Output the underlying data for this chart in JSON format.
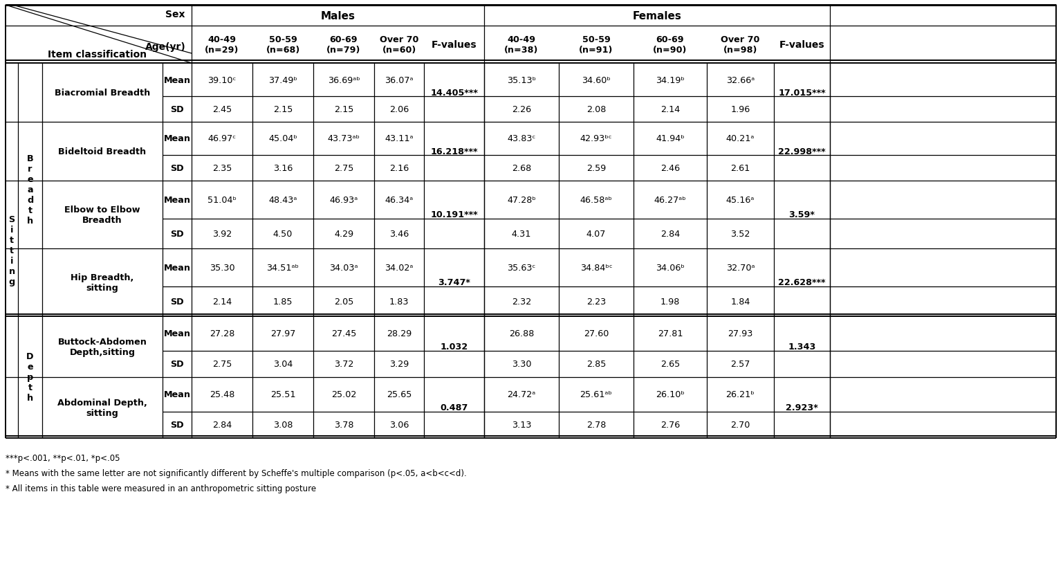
{
  "footnotes": [
    "***p<.001, **p<.01, *p<.05",
    "* Means with the same letter are not significantly different by Scheffe's multiple comparison (p<.05, a<b<c<d).",
    "* All items in this table were measured in an anthropometric sitting posture"
  ],
  "age_groups_male": [
    "40-49\n(n=29)",
    "50-59\n(n=68)",
    "60-69\n(n=79)",
    "Over 70\n(n=60)"
  ],
  "age_groups_female": [
    "40-49\n(n=38)",
    "50-59\n(n=91)",
    "60-69\n(n=90)",
    "Over 70\n(n=98)"
  ],
  "rows": [
    {
      "group": "Breadth",
      "item": "Biacromial Breadth",
      "stat": "Mean",
      "male_vals": [
        "39.10ᶜ",
        "37.49ᵇ",
        "36.69ᵃᵇ",
        "36.07ᵃ"
      ],
      "fval_male": "14.405***",
      "female_vals": [
        "35.13ᵇ",
        "34.60ᵇ",
        "34.19ᵇ",
        "32.66ᵃ"
      ],
      "fval_female": "17.015***"
    },
    {
      "group": "Breadth",
      "item": "Biacromial Breadth",
      "stat": "SD",
      "male_vals": [
        "2.45",
        "2.15",
        "2.15",
        "2.06"
      ],
      "fval_male": "",
      "female_vals": [
        "2.26",
        "2.08",
        "2.14",
        "1.96"
      ],
      "fval_female": ""
    },
    {
      "group": "Breadth",
      "item": "Bideltoid Breadth",
      "stat": "Mean",
      "male_vals": [
        "46.97ᶜ",
        "45.04ᵇ",
        "43.73ᵃᵇ",
        "43.11ᵃ"
      ],
      "fval_male": "16.218***",
      "female_vals": [
        "43.83ᶜ",
        "42.93ᵇᶜ",
        "41.94ᵇ",
        "40.21ᵃ"
      ],
      "fval_female": "22.998***"
    },
    {
      "group": "Breadth",
      "item": "Bideltoid Breadth",
      "stat": "SD",
      "male_vals": [
        "2.35",
        "3.16",
        "2.75",
        "2.16"
      ],
      "fval_male": "",
      "female_vals": [
        "2.68",
        "2.59",
        "2.46",
        "2.61"
      ],
      "fval_female": ""
    },
    {
      "group": "Breadth",
      "item": "Elbow to Elbow\nBreadth",
      "stat": "Mean",
      "male_vals": [
        "51.04ᵇ",
        "48.43ᵃ",
        "46.93ᵃ",
        "46.34ᵃ"
      ],
      "fval_male": "10.191***",
      "female_vals": [
        "47.28ᵇ",
        "46.58ᵃᵇ",
        "46.27ᵃᵇ",
        "45.16ᵃ"
      ],
      "fval_female": "3.59*"
    },
    {
      "group": "Breadth",
      "item": "Elbow to Elbow\nBreadth",
      "stat": "SD",
      "male_vals": [
        "3.92",
        "4.50",
        "4.29",
        "3.46"
      ],
      "fval_male": "",
      "female_vals": [
        "4.31",
        "4.07",
        "2.84",
        "3.52"
      ],
      "fval_female": ""
    },
    {
      "group": "Breadth",
      "item": "Hip Breadth,\nsitting",
      "stat": "Mean",
      "male_vals": [
        "35.30",
        "34.51ᵃᵇ",
        "34.03ᵃ",
        "34.02ᵃ"
      ],
      "fval_male": "3.747*",
      "female_vals": [
        "35.63ᶜ",
        "34.84ᵇᶜ",
        "34.06ᵇ",
        "32.70ᵃ"
      ],
      "fval_female": "22.628***"
    },
    {
      "group": "Breadth",
      "item": "Hip Breadth,\nsitting",
      "stat": "SD",
      "male_vals": [
        "2.14",
        "1.85",
        "2.05",
        "1.83"
      ],
      "fval_male": "",
      "female_vals": [
        "2.32",
        "2.23",
        "1.98",
        "1.84"
      ],
      "fval_female": ""
    },
    {
      "group": "Depth",
      "item": "Buttock-Abdomen\nDepth,sitting",
      "stat": "Mean",
      "male_vals": [
        "27.28",
        "27.97",
        "27.45",
        "28.29"
      ],
      "fval_male": "1.032",
      "female_vals": [
        "26.88",
        "27.60",
        "27.81",
        "27.93"
      ],
      "fval_female": "1.343"
    },
    {
      "group": "Depth",
      "item": "Buttock-Abdomen\nDepth,sitting",
      "stat": "SD",
      "male_vals": [
        "2.75",
        "3.04",
        "3.72",
        "3.29"
      ],
      "fval_male": "",
      "female_vals": [
        "3.30",
        "2.85",
        "2.65",
        "2.57"
      ],
      "fval_female": ""
    },
    {
      "group": "Depth",
      "item": "Abdominal Depth,\nsitting",
      "stat": "Mean",
      "male_vals": [
        "25.48",
        "25.51",
        "25.02",
        "25.65"
      ],
      "fval_male": "0.487",
      "female_vals": [
        "24.72ᵃ",
        "25.61ᵃᵇ",
        "26.10ᵇ",
        "26.21ᵇ"
      ],
      "fval_female": "2.923*"
    },
    {
      "group": "Depth",
      "item": "Abdominal Depth,\nsitting",
      "stat": "SD",
      "male_vals": [
        "2.84",
        "3.08",
        "3.78",
        "3.06"
      ],
      "fval_male": "",
      "female_vals": [
        "3.13",
        "2.78",
        "2.76",
        "2.70"
      ],
      "fval_female": ""
    }
  ]
}
